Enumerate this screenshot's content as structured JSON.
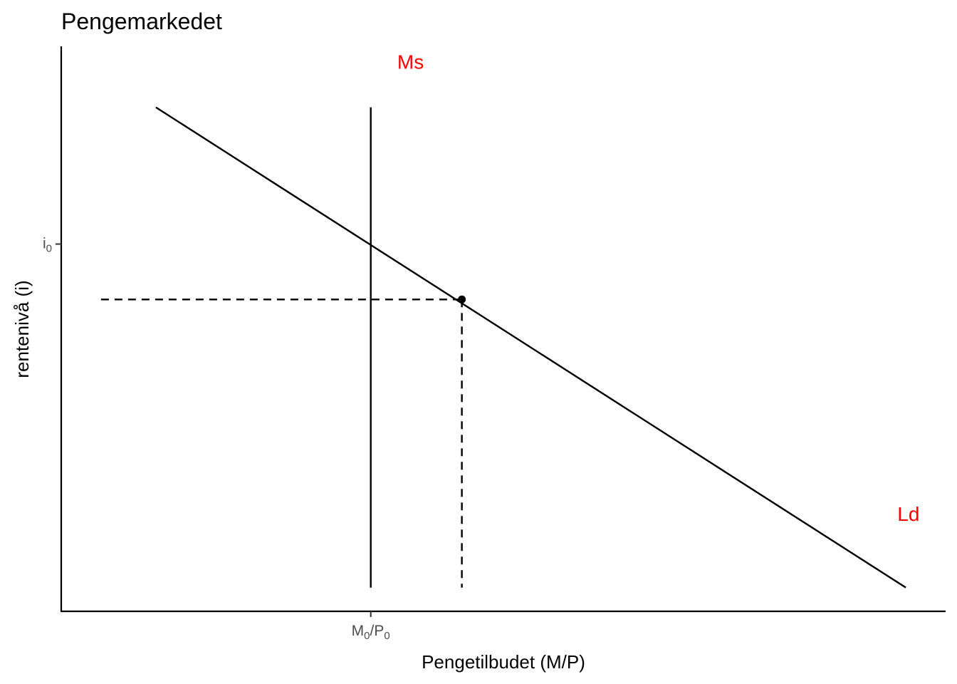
{
  "chart_data": {
    "type": "line",
    "title": "Pengemarkedet",
    "xlabel": "Pengetilbudet (M/P)",
    "ylabel": "rentenivå (i)",
    "xlim": [
      0,
      10
    ],
    "ylim": [
      0,
      10
    ],
    "grid": false,
    "x_ticks": [
      {
        "value": 3.5,
        "main": "M",
        "sub": "0",
        "main2": "/P",
        "sub2": "0"
      }
    ],
    "y_ticks": [
      {
        "value": 6.5,
        "main": "i",
        "sub": "0"
      }
    ],
    "series": [
      {
        "name": "Ld",
        "style": "solid",
        "x": [
          1.07,
          9.55
        ],
        "y": [
          8.92,
          0.42
        ]
      },
      {
        "name": "Ms",
        "style": "solid",
        "x": [
          3.5,
          3.5
        ],
        "y": [
          0.42,
          8.92
        ]
      }
    ],
    "guides": [
      {
        "style": "dashed",
        "x": [
          0.45,
          4.53
        ],
        "y": [
          5.52,
          5.52
        ]
      },
      {
        "style": "dashed",
        "x": [
          4.53,
          4.53
        ],
        "y": [
          5.52,
          0.42
        ]
      }
    ],
    "points": [
      {
        "x": 4.53,
        "y": 5.52
      }
    ],
    "annotations": [
      {
        "text": "Ms",
        "x": 3.95,
        "y": 9.6,
        "color": "#ff0000"
      },
      {
        "text": "Ld",
        "x": 9.58,
        "y": 1.6,
        "color": "#ff0000"
      }
    ],
    "colors": {
      "line": "#000000",
      "label": "#ff0000",
      "tick_text": "#4d4d4d"
    }
  }
}
